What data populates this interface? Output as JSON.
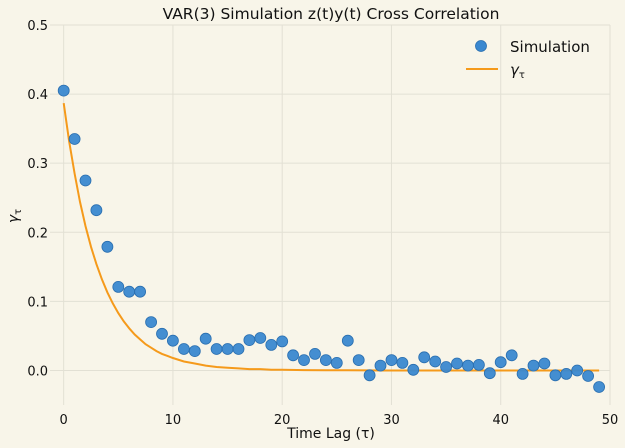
{
  "chart_data": {
    "type": "scatter",
    "title": "VAR(3) Simulation z(t)y(t) Cross Correlation",
    "xlabel": "Time Lag (τ)",
    "ylabel": "γ",
    "ylabel_subscript": "τ",
    "xlim": [
      -1.25,
      50
    ],
    "ylim": [
      -0.05,
      0.5
    ],
    "xticks": [
      0,
      10,
      20,
      30,
      40,
      50
    ],
    "yticks": [
      0.0,
      0.1,
      0.2,
      0.3,
      0.4,
      0.5
    ],
    "xtick_labels": [
      "0",
      "10",
      "20",
      "30",
      "40",
      "50"
    ],
    "ytick_labels": [
      "0.0",
      "0.1",
      "0.2",
      "0.3",
      "0.4",
      "0.5"
    ],
    "grid": true,
    "legend_position": "top-right",
    "series": [
      {
        "name": "Simulation",
        "kind": "scatter",
        "color": "#3a88d0",
        "x": [
          0,
          1,
          2,
          3,
          4,
          5,
          6,
          7,
          8,
          9,
          10,
          11,
          12,
          13,
          14,
          15,
          16,
          17,
          18,
          19,
          20,
          21,
          22,
          23,
          24,
          25,
          26,
          27,
          28,
          29,
          30,
          31,
          32,
          33,
          34,
          35,
          36,
          37,
          38,
          39,
          40,
          41,
          42,
          43,
          44,
          45,
          46,
          47,
          48,
          49
        ],
        "y": [
          0.405,
          0.335,
          0.275,
          0.232,
          0.179,
          0.121,
          0.114,
          0.114,
          0.07,
          0.053,
          0.043,
          0.031,
          0.028,
          0.046,
          0.031,
          0.031,
          0.031,
          0.044,
          0.047,
          0.037,
          0.042,
          0.022,
          0.015,
          0.024,
          0.015,
          0.011,
          0.043,
          0.015,
          -0.007,
          0.007,
          0.015,
          0.011,
          0.001,
          0.019,
          0.013,
          0.005,
          0.01,
          0.007,
          0.008,
          -0.004,
          0.012,
          0.022,
          -0.005,
          0.007,
          0.01,
          -0.007,
          -0.005,
          0.0,
          -0.008,
          -0.024
        ]
      },
      {
        "name": "γ",
        "name_subscript": "τ",
        "kind": "line",
        "color": "#f59a1b",
        "x": [
          0,
          0.5,
          1,
          1.5,
          2,
          2.5,
          3,
          3.5,
          4,
          4.5,
          5,
          5.5,
          6,
          6.5,
          7,
          7.5,
          8,
          8.5,
          9,
          9.5,
          10,
          11,
          12,
          13,
          14,
          15,
          16,
          17,
          18,
          19,
          20,
          22,
          24,
          26,
          28,
          30,
          32,
          34,
          36,
          38,
          40,
          42,
          44,
          46,
          48,
          49
        ],
        "y": [
          0.387,
          0.332,
          0.285,
          0.244,
          0.209,
          0.179,
          0.154,
          0.132,
          0.113,
          0.097,
          0.083,
          0.071,
          0.061,
          0.052,
          0.045,
          0.038,
          0.033,
          0.028,
          0.024,
          0.021,
          0.018,
          0.013,
          0.01,
          0.007,
          0.005,
          0.004,
          0.003,
          0.002,
          0.002,
          0.001,
          0.001,
          0.0005,
          0.0003,
          0.0002,
          0.0001,
          0.0,
          0.0,
          0.0,
          0.0,
          0.0,
          0.0,
          0.0,
          0.0,
          0.0,
          0.0,
          0.0
        ]
      }
    ]
  }
}
